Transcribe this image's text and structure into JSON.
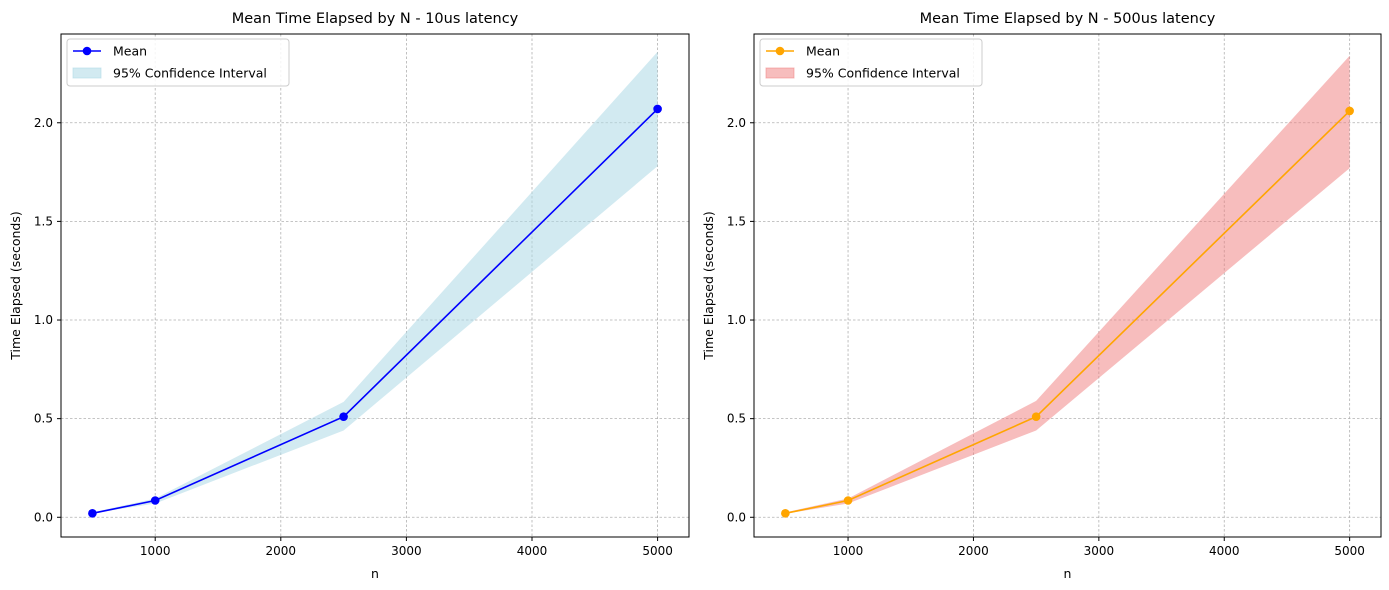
{
  "chart_data": [
    {
      "type": "line",
      "title": "Mean Time Elapsed by N - 10us latency",
      "xlabel": "n",
      "ylabel": "Time Elapsed (seconds)",
      "x": [
        500,
        1000,
        2500,
        5000
      ],
      "xlim": [
        250,
        5250
      ],
      "ylim": [
        -0.1,
        2.45
      ],
      "xticks": [
        1000,
        2000,
        3000,
        4000,
        5000
      ],
      "yticks": [
        0.0,
        0.5,
        1.0,
        1.5,
        2.0
      ],
      "xtick_labels": [
        "1000",
        "2000",
        "3000",
        "4000",
        "5000"
      ],
      "ytick_labels": [
        "0.0",
        "0.5",
        "1.0",
        "1.5",
        "2.0"
      ],
      "grid": true,
      "legend_position": "top-left",
      "series": [
        {
          "name": "Mean",
          "kind": "line-marker",
          "values": [
            0.02,
            0.085,
            0.51,
            2.07
          ],
          "color": "#0000ff"
        },
        {
          "name": "95% Confidence Interval",
          "kind": "band",
          "lower": [
            0.02,
            0.07,
            0.44,
            1.78
          ],
          "upper": [
            0.025,
            0.095,
            0.585,
            2.36
          ],
          "color": "#add8e6"
        }
      ]
    },
    {
      "type": "line",
      "title": "Mean Time Elapsed by N - 500us latency",
      "xlabel": "n",
      "ylabel": "Time Elapsed (seconds)",
      "x": [
        500,
        1000,
        2500,
        5000
      ],
      "xlim": [
        250,
        5250
      ],
      "ylim": [
        -0.1,
        2.45
      ],
      "xticks": [
        1000,
        2000,
        3000,
        4000,
        5000
      ],
      "yticks": [
        0.0,
        0.5,
        1.0,
        1.5,
        2.0
      ],
      "xtick_labels": [
        "1000",
        "2000",
        "3000",
        "4000",
        "5000"
      ],
      "ytick_labels": [
        "0.0",
        "0.5",
        "1.0",
        "1.5",
        "2.0"
      ],
      "grid": true,
      "legend_position": "top-left",
      "series": [
        {
          "name": "Mean",
          "kind": "line-marker",
          "values": [
            0.02,
            0.085,
            0.51,
            2.06
          ],
          "color": "#ffa500"
        },
        {
          "name": "95% Confidence Interval",
          "kind": "band",
          "lower": [
            0.018,
            0.07,
            0.44,
            1.77
          ],
          "upper": [
            0.025,
            0.095,
            0.59,
            2.34
          ],
          "color": "#f08080"
        }
      ]
    }
  ]
}
